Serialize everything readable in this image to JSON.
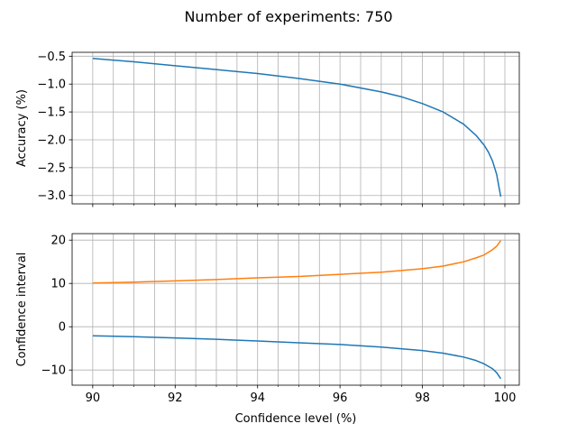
{
  "chart_data": [
    {
      "type": "line",
      "title": "Number of experiments: 750",
      "xlabel": "",
      "ylabel": "Accuracy (%)",
      "xlim": [
        89.5,
        100.35
      ],
      "ylim": [
        -3.15,
        -0.43
      ],
      "grid": true,
      "x_ticks": [
        90,
        92,
        94,
        96,
        98,
        100
      ],
      "x_minor_ticks": [
        90.5,
        91,
        91.5,
        92.5,
        93,
        93.5,
        94.5,
        95,
        95.5,
        96.5,
        97,
        97.5,
        98.5,
        99,
        99.5
      ],
      "y_ticks": [
        -0.5,
        -1.0,
        -1.5,
        -2.0,
        -2.5,
        -3.0
      ],
      "y_tick_labels": [
        "−0.5",
        "−1.0",
        "−1.5",
        "−2.0",
        "−2.5",
        "−3.0"
      ],
      "series": [
        {
          "color": "#1f77b4",
          "x": [
            90,
            91,
            92,
            93,
            94,
            95,
            96,
            97,
            97.5,
            98,
            98.5,
            99,
            99.3,
            99.5,
            99.6,
            99.7,
            99.8,
            99.9
          ],
          "y": [
            -0.54,
            -0.6,
            -0.67,
            -0.74,
            -0.81,
            -0.9,
            -1.0,
            -1.14,
            -1.23,
            -1.35,
            -1.5,
            -1.72,
            -1.92,
            -2.1,
            -2.22,
            -2.38,
            -2.62,
            -3.02
          ]
        }
      ]
    },
    {
      "type": "line",
      "title": "",
      "xlabel": "Confidence level (%)",
      "ylabel": "Confidence interval",
      "xlim": [
        89.5,
        100.35
      ],
      "ylim": [
        -13.5,
        21.5
      ],
      "grid": true,
      "x_ticks": [
        90,
        92,
        94,
        96,
        98,
        100
      ],
      "x_minor_ticks": [
        90.5,
        91,
        91.5,
        92.5,
        93,
        93.5,
        94.5,
        95,
        95.5,
        96.5,
        97,
        97.5,
        98.5,
        99,
        99.5
      ],
      "y_ticks": [
        -10,
        0,
        10,
        20
      ],
      "y_tick_labels": [
        "−10",
        "0",
        "10",
        "20"
      ],
      "series": [
        {
          "color": "#1f77b4",
          "x": [
            90,
            91,
            92,
            93,
            94,
            95,
            96,
            97,
            98,
            98.5,
            99,
            99.3,
            99.5,
            99.7,
            99.8,
            99.9
          ],
          "y": [
            -2.1,
            -2.3,
            -2.6,
            -2.9,
            -3.3,
            -3.7,
            -4.1,
            -4.7,
            -5.5,
            -6.1,
            -7.0,
            -7.8,
            -8.6,
            -9.7,
            -10.6,
            -12.0
          ]
        },
        {
          "color": "#ff7f0e",
          "x": [
            90,
            91,
            92,
            93,
            94,
            95,
            96,
            97,
            98,
            98.5,
            99,
            99.3,
            99.5,
            99.7,
            99.8,
            99.9
          ],
          "y": [
            10.1,
            10.3,
            10.6,
            10.9,
            11.3,
            11.6,
            12.1,
            12.6,
            13.4,
            14.0,
            15.0,
            15.9,
            16.6,
            17.8,
            18.6,
            19.9
          ]
        }
      ]
    }
  ]
}
